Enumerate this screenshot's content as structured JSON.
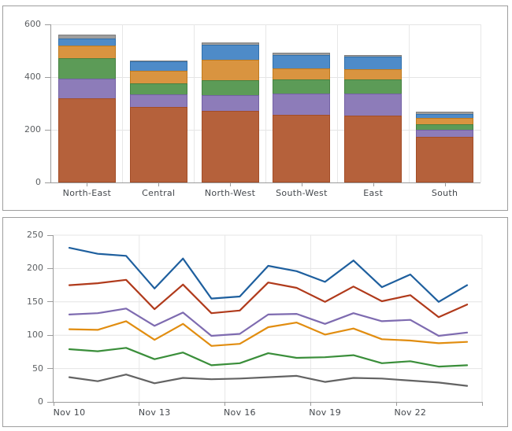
{
  "theme": {
    "panel_border": "#9e9e9e",
    "axis_color": "#9b9b9b",
    "grid_color": "#e4e4e4",
    "y_label_color": "#5d6063",
    "x_label_color": "#44484d",
    "background": "#ffffff"
  },
  "chart_data": [
    {
      "type": "bar",
      "stacked": true,
      "title": "",
      "xlabel": "",
      "ylabel": "",
      "legend": "none",
      "grid": true,
      "ylim": [
        0,
        600
      ],
      "yticks": [
        0,
        200,
        400,
        600
      ],
      "categories": [
        "North-East",
        "Central",
        "North-West",
        "South-West",
        "East",
        "South"
      ],
      "series": [
        {
          "name": "rust-segment",
          "color": "#b5613b",
          "border": "#a34d27",
          "values": [
            318,
            288,
            273,
            258,
            255,
            174
          ]
        },
        {
          "name": "purple-segment",
          "color": "#8d7cb9",
          "border": "#7361a3",
          "values": [
            77,
            50,
            64,
            84,
            87,
            30
          ]
        },
        {
          "name": "green-segment",
          "color": "#5c9b57",
          "border": "#468140",
          "values": [
            81,
            45,
            60,
            56,
            56,
            24
          ]
        },
        {
          "name": "orange-segment",
          "color": "#d99440",
          "border": "#bf7a1e",
          "values": [
            50,
            51,
            82,
            44,
            41,
            27
          ]
        },
        {
          "name": "blue-segment",
          "color": "#4e8bc8",
          "border": "#3170ab",
          "values": [
            30,
            38,
            60,
            54,
            51,
            18
          ]
        },
        {
          "name": "gray-segment",
          "color": "#9d9d9d",
          "border": "#7d7d7d",
          "values": [
            17,
            5,
            11,
            12,
            9,
            12
          ]
        }
      ],
      "totals": [
        573,
        477,
        550,
        508,
        499,
        285
      ]
    },
    {
      "type": "line",
      "title": "",
      "xlabel": "",
      "ylabel": "",
      "legend": "none",
      "grid": true,
      "ylim": [
        0,
        250
      ],
      "yticks": [
        0,
        50,
        100,
        150,
        200,
        250
      ],
      "x": [
        "Nov 10",
        "Nov 11",
        "Nov 12",
        "Nov 13",
        "Nov 14",
        "Nov 15",
        "Nov 16",
        "Nov 17",
        "Nov 18",
        "Nov 19",
        "Nov 20",
        "Nov 21",
        "Nov 22",
        "Nov 23",
        "Nov 24"
      ],
      "x_tick_labels": [
        "Nov 10",
        "Nov 13",
        "Nov 16",
        "Nov 19",
        "Nov 22"
      ],
      "x_tick_indices": [
        0,
        3,
        6,
        9,
        12
      ],
      "series": [
        {
          "name": "blue-line",
          "color": "#1e5f9e",
          "values": [
            231,
            222,
            219,
            170,
            215,
            155,
            158,
            204,
            196,
            180,
            212,
            172,
            191,
            150,
            175
          ]
        },
        {
          "name": "red-line",
          "color": "#b03a1b",
          "values": [
            175,
            178,
            183,
            139,
            176,
            133,
            137,
            179,
            171,
            150,
            173,
            151,
            160,
            127,
            146
          ]
        },
        {
          "name": "purple-line",
          "color": "#7e6bb0",
          "values": [
            131,
            133,
            140,
            114,
            134,
            99,
            102,
            131,
            132,
            117,
            133,
            121,
            123,
            99,
            104
          ]
        },
        {
          "name": "orange-line",
          "color": "#e18d10",
          "values": [
            109,
            108,
            121,
            93,
            117,
            84,
            87,
            112,
            119,
            101,
            110,
            94,
            92,
            88,
            90
          ]
        },
        {
          "name": "green-line",
          "color": "#3a8e3a",
          "values": [
            79,
            76,
            81,
            64,
            74,
            55,
            58,
            73,
            66,
            67,
            70,
            58,
            61,
            53,
            55
          ]
        },
        {
          "name": "gray-line",
          "color": "#636363",
          "values": [
            37,
            31,
            41,
            28,
            36,
            34,
            35,
            37,
            39,
            30,
            36,
            35,
            32,
            29,
            24
          ]
        }
      ]
    }
  ]
}
